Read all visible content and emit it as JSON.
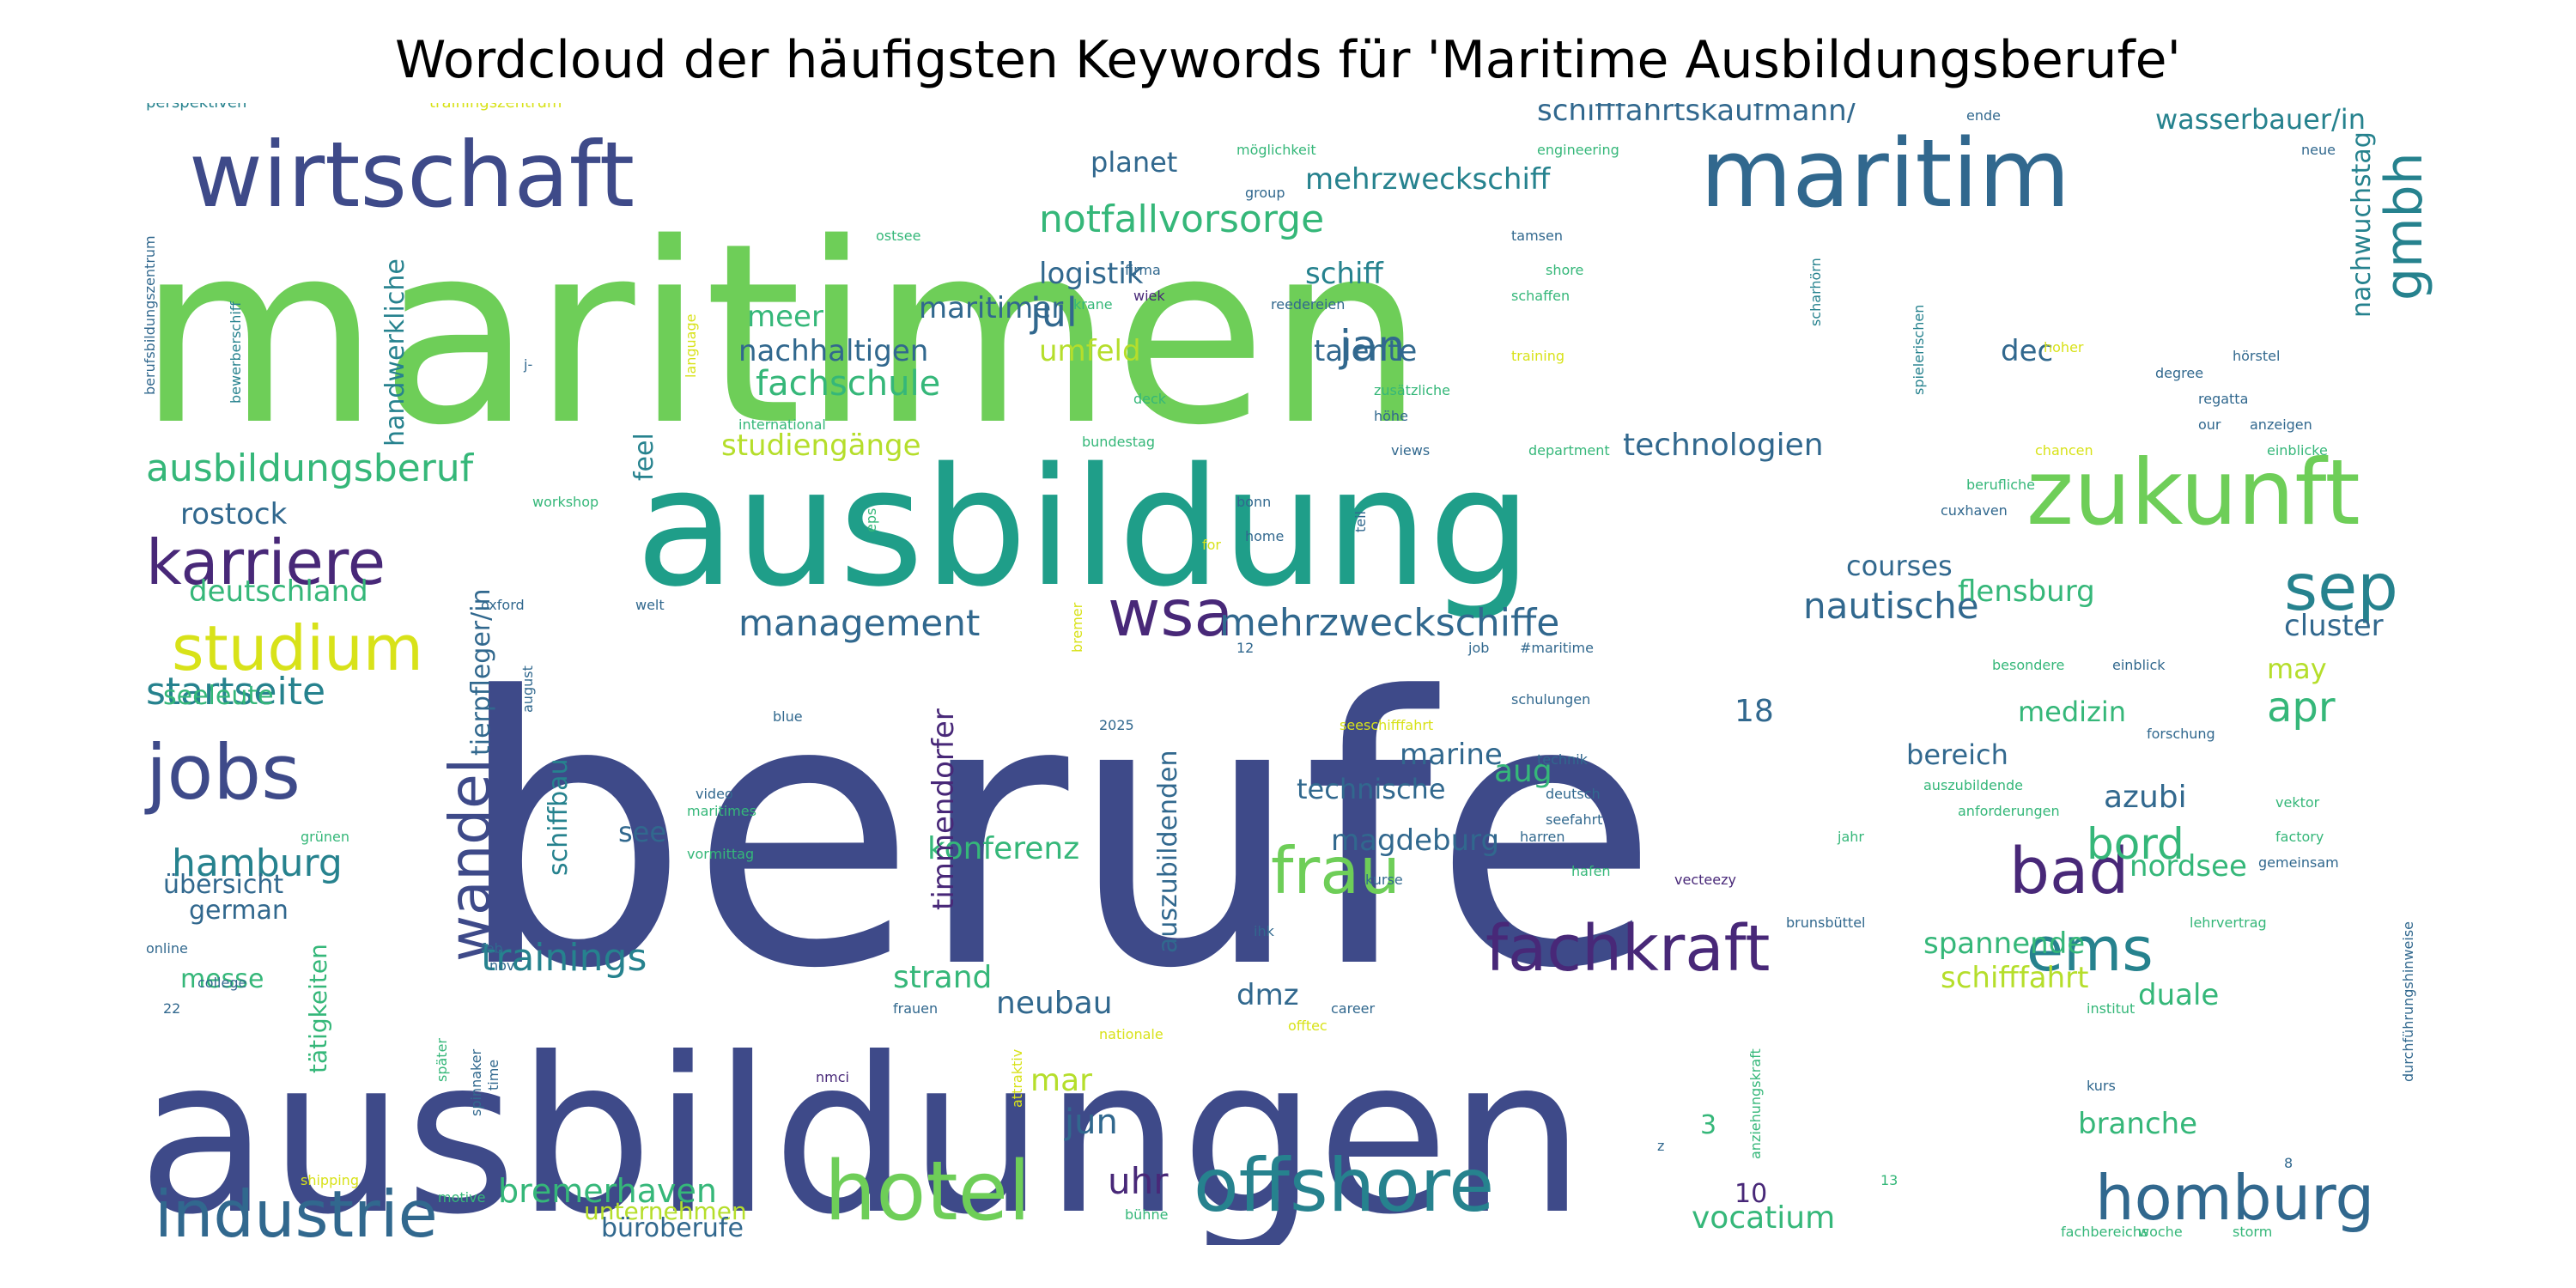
{
  "title": "Wordcloud der häufigsten Keywords für 'Maritime Ausbildungsberufe'",
  "words": [
    {
      "text": "maritimen",
      "color": "#6ece58"
    },
    {
      "text": "berufe",
      "color": "#3e4a89"
    },
    {
      "text": "ausbildungen",
      "color": "#3e4a89"
    },
    {
      "text": "ausbildung",
      "color": "#1f9e89"
    },
    {
      "text": "wirtschaft",
      "color": "#3e4a89"
    },
    {
      "text": "maritim",
      "color": "#31688e"
    },
    {
      "text": "zukunft",
      "color": "#6ece58"
    },
    {
      "text": "karriere",
      "color": "#482878"
    },
    {
      "text": "studium",
      "color": "#d8e219"
    },
    {
      "text": "jobs",
      "color": "#3e4a89"
    },
    {
      "text": "wandel",
      "color": "#3e4a89"
    },
    {
      "text": "hotel",
      "color": "#6ece58"
    },
    {
      "text": "offshore",
      "color": "#26828e"
    },
    {
      "text": "industrie",
      "color": "#31688e"
    },
    {
      "text": "homburg",
      "color": "#31688e"
    },
    {
      "text": "fachkraft",
      "color": "#482878"
    },
    {
      "text": "bad",
      "color": "#482878"
    },
    {
      "text": "ems",
      "color": "#26828e"
    },
    {
      "text": "sep",
      "color": "#26828e"
    },
    {
      "text": "wsa",
      "color": "#482878"
    },
    {
      "text": "frau",
      "color": "#6ece58"
    },
    {
      "text": "gmbh",
      "color": "#26828e"
    },
    {
      "text": "mehrzweckschiffe",
      "color": "#31688e"
    },
    {
      "text": "notfallvorsorge",
      "color": "#35b779"
    },
    {
      "text": "ausbildungsberuf",
      "color": "#35b779"
    },
    {
      "text": "startseite",
      "color": "#26828e"
    },
    {
      "text": "management",
      "color": "#31688e"
    },
    {
      "text": "nautische",
      "color": "#31688e"
    },
    {
      "text": "technologien",
      "color": "#31688e"
    },
    {
      "text": "trainings",
      "color": "#26828e"
    },
    {
      "text": "hamburg",
      "color": "#26828e"
    },
    {
      "text": "deutschland",
      "color": "#35b779"
    },
    {
      "text": "rostock",
      "color": "#31688e"
    },
    {
      "text": "jan",
      "color": "#31688e"
    },
    {
      "text": "jul",
      "color": "#31688e"
    },
    {
      "text": "fachschule",
      "color": "#35b779"
    },
    {
      "text": "bord",
      "color": "#35b779"
    },
    {
      "text": "apr",
      "color": "#35b779"
    },
    {
      "text": "konferenz",
      "color": "#35b779"
    },
    {
      "text": "timmendorfer",
      "color": "#482878"
    },
    {
      "text": "magdeburg",
      "color": "#31688e"
    },
    {
      "text": "marine",
      "color": "#31688e"
    },
    {
      "text": "technische",
      "color": "#31688e"
    },
    {
      "text": "auszubildenden",
      "color": "#31688e"
    },
    {
      "text": "bremerhaven",
      "color": "#35b779"
    },
    {
      "text": "uhr",
      "color": "#482878"
    },
    {
      "text": "strand",
      "color": "#35b779"
    },
    {
      "text": "neubau",
      "color": "#31688e"
    },
    {
      "text": "jun",
      "color": "#31688e"
    },
    {
      "text": "mar",
      "color": "#b5de2b"
    },
    {
      "text": "dmz",
      "color": "#31688e"
    },
    {
      "text": "vocatium",
      "color": "#35b779"
    },
    {
      "text": "branche",
      "color": "#35b779"
    },
    {
      "text": "spannende",
      "color": "#35b779"
    },
    {
      "text": "schifffahrt",
      "color": "#b5de2b"
    },
    {
      "text": "duale",
      "color": "#35b779"
    },
    {
      "text": "nordsee",
      "color": "#35b779"
    },
    {
      "text": "azubi",
      "color": "#31688e"
    },
    {
      "text": "aug",
      "color": "#35b779"
    },
    {
      "text": "see",
      "color": "#31688e"
    },
    {
      "text": "medizin",
      "color": "#35b779"
    },
    {
      "text": "bereich",
      "color": "#31688e"
    },
    {
      "text": "18",
      "color": "#31688e"
    },
    {
      "text": "flensburg",
      "color": "#35b779"
    },
    {
      "text": "courses",
      "color": "#31688e"
    },
    {
      "text": "cluster",
      "color": "#31688e"
    },
    {
      "text": "may",
      "color": "#b5de2b"
    },
    {
      "text": "schiffbau",
      "color": "#26828e"
    },
    {
      "text": "tierpfleger/in",
      "color": "#31688e"
    },
    {
      "text": "handwerkliche",
      "color": "#26828e"
    },
    {
      "text": "feel",
      "color": "#26828e"
    },
    {
      "text": "meer",
      "color": "#35b779"
    },
    {
      "text": "maritimer",
      "color": "#31688e"
    },
    {
      "text": "nachhaltigen",
      "color": "#31688e"
    },
    {
      "text": "umfeld",
      "color": "#b5de2b"
    },
    {
      "text": "studiengänge",
      "color": "#b5de2b"
    },
    {
      "text": "logistik",
      "color": "#31688e"
    },
    {
      "text": "schiff",
      "color": "#26828e"
    },
    {
      "text": "talente",
      "color": "#31688e"
    },
    {
      "text": "dec",
      "color": "#31688e"
    },
    {
      "text": "nachwuchstag",
      "color": "#26828e"
    },
    {
      "text": "mehrzweckschiff",
      "color": "#26828e"
    },
    {
      "text": "schifffahrtskaufmann/",
      "color": "#31688e"
    },
    {
      "text": "wasserbauer/in",
      "color": "#26828e"
    },
    {
      "text": "planet",
      "color": "#31688e"
    },
    {
      "text": "seeleute",
      "color": "#35b779"
    },
    {
      "text": "übersicht",
      "color": "#31688e"
    },
    {
      "text": "german",
      "color": "#31688e"
    },
    {
      "text": "messe",
      "color": "#35b779"
    },
    {
      "text": "tätigkeiten",
      "color": "#35b779"
    },
    {
      "text": "unternehmen",
      "color": "#b5de2b"
    },
    {
      "text": "büroberufe",
      "color": "#31688e"
    },
    {
      "text": "10",
      "color": "#482878"
    },
    {
      "text": "3",
      "color": "#35b779"
    },
    {
      "text": "perspektiven",
      "color": "#26828e"
    },
    {
      "text": "trainingszentrum",
      "color": "#d8e219"
    },
    {
      "text": "berufsbildungszentrum",
      "color": "#31688e"
    },
    {
      "text": "bewerberschiff",
      "color": "#26828e"
    },
    {
      "text": "möglichkeit",
      "color": "#35b779"
    },
    {
      "text": "engineering",
      "color": "#35b779"
    },
    {
      "text": "group",
      "color": "#31688e"
    },
    {
      "text": "ende",
      "color": "#31688e"
    },
    {
      "text": "neue",
      "color": "#31688e"
    },
    {
      "text": "ostsee",
      "color": "#35b779"
    },
    {
      "text": "tamsen",
      "color": "#31688e"
    },
    {
      "text": "shore",
      "color": "#35b779"
    },
    {
      "text": "schaffen",
      "color": "#35b779"
    },
    {
      "text": "firma",
      "color": "#31688e"
    },
    {
      "text": "krane",
      "color": "#35b779"
    },
    {
      "text": "wiek",
      "color": "#482878"
    },
    {
      "text": "reedereien",
      "color": "#31688e"
    },
    {
      "text": "training",
      "color": "#d8e219"
    },
    {
      "text": "scharhörn",
      "color": "#26828e"
    },
    {
      "text": "spielerischen",
      "color": "#26828e"
    },
    {
      "text": "hoher",
      "color": "#d8e219"
    },
    {
      "text": "degree",
      "color": "#31688e"
    },
    {
      "text": "hörstel",
      "color": "#31688e"
    },
    {
      "text": "regatta",
      "color": "#31688e"
    },
    {
      "text": "anzeigen",
      "color": "#31688e"
    },
    {
      "text": "einblicke",
      "color": "#35b779"
    },
    {
      "text": "our",
      "color": "#31688e"
    },
    {
      "text": "language",
      "color": "#d8e219"
    },
    {
      "text": "international",
      "color": "#35b779"
    },
    {
      "text": "deck",
      "color": "#35b779"
    },
    {
      "text": "zusätzliche",
      "color": "#35b779"
    },
    {
      "text": "höhe",
      "color": "#31688e"
    },
    {
      "text": "bundestag",
      "color": "#35b779"
    },
    {
      "text": "views",
      "color": "#31688e"
    },
    {
      "text": "department",
      "color": "#35b779"
    },
    {
      "text": "chancen",
      "color": "#d8e219"
    },
    {
      "text": "berufliche",
      "color": "#35b779"
    },
    {
      "text": "cuxhaven",
      "color": "#31688e"
    },
    {
      "text": "workshop",
      "color": "#35b779"
    },
    {
      "text": "bonn",
      "color": "#31688e"
    },
    {
      "text": "home",
      "color": "#31688e"
    },
    {
      "text": "for",
      "color": "#d8e219"
    },
    {
      "text": "teil",
      "color": "#31688e"
    },
    {
      "text": "eps",
      "color": "#35b779"
    },
    {
      "text": "oxford",
      "color": "#31688e"
    },
    {
      "text": "welt",
      "color": "#31688e"
    },
    {
      "text": "12",
      "color": "#31688e"
    },
    {
      "text": "job",
      "color": "#31688e"
    },
    {
      "text": "#maritime",
      "color": "#31688e"
    },
    {
      "text": "besondere",
      "color": "#35b779"
    },
    {
      "text": "einblick",
      "color": "#31688e"
    },
    {
      "text": "bremer",
      "color": "#d8e219"
    },
    {
      "text": "august",
      "color": "#31688e"
    },
    {
      "text": "video",
      "color": "#31688e"
    },
    {
      "text": "blue",
      "color": "#31688e"
    },
    {
      "text": "maritimes",
      "color": "#35b779"
    },
    {
      "text": "vormittag",
      "color": "#35b779"
    },
    {
      "text": "2025",
      "color": "#31688e"
    },
    {
      "text": "seeschifffahrt",
      "color": "#d8e219"
    },
    {
      "text": "schulungen",
      "color": "#31688e"
    },
    {
      "text": "technik",
      "color": "#31688e"
    },
    {
      "text": "deutsch",
      "color": "#31688e"
    },
    {
      "text": "seefahrt",
      "color": "#31688e"
    },
    {
      "text": "harren",
      "color": "#31688e"
    },
    {
      "text": "forschung",
      "color": "#31688e"
    },
    {
      "text": "auszubildende",
      "color": "#35b779"
    },
    {
      "text": "anforderungen",
      "color": "#35b779"
    },
    {
      "text": "vektor",
      "color": "#35b779"
    },
    {
      "text": "jahr",
      "color": "#35b779"
    },
    {
      "text": "factory",
      "color": "#35b779"
    },
    {
      "text": "hafen",
      "color": "#35b779"
    },
    {
      "text": "kurse",
      "color": "#31688e"
    },
    {
      "text": "vecteezy",
      "color": "#482878"
    },
    {
      "text": "gemeinsam",
      "color": "#31688e"
    },
    {
      "text": "grünen",
      "color": "#35b779"
    },
    {
      "text": "online",
      "color": "#31688e"
    },
    {
      "text": "feb",
      "color": "#31688e"
    },
    {
      "text": "nov",
      "color": "#31688e"
    },
    {
      "text": "ihk",
      "color": "#31688e"
    },
    {
      "text": "brunsbüttel",
      "color": "#31688e"
    },
    {
      "text": "lehrvertrag",
      "color": "#35b779"
    },
    {
      "text": "college",
      "color": "#31688e"
    },
    {
      "text": "22",
      "color": "#31688e"
    },
    {
      "text": "frauen",
      "color": "#31688e"
    },
    {
      "text": "career",
      "color": "#31688e"
    },
    {
      "text": "offtec",
      "color": "#d8e219"
    },
    {
      "text": "nationale",
      "color": "#d8e219"
    },
    {
      "text": "institut",
      "color": "#35b779"
    },
    {
      "text": "durchführungshinweise",
      "color": "#31688e"
    },
    {
      "text": "anziehungskraft",
      "color": "#35b779"
    },
    {
      "text": "nmci",
      "color": "#482878"
    },
    {
      "text": "spinnaker",
      "color": "#31688e"
    },
    {
      "text": "später",
      "color": "#35b779"
    },
    {
      "text": "time",
      "color": "#31688e"
    },
    {
      "text": "attraktiv",
      "color": "#d8e219"
    },
    {
      "text": "kurs",
      "color": "#31688e"
    },
    {
      "text": "shipping",
      "color": "#d8e219"
    },
    {
      "text": "motive",
      "color": "#35b779"
    },
    {
      "text": "13",
      "color": "#35b779"
    },
    {
      "text": "bühne",
      "color": "#35b779"
    },
    {
      "text": "fachbereichs",
      "color": "#35b779"
    },
    {
      "text": "woche",
      "color": "#35b779"
    },
    {
      "text": "storm",
      "color": "#35b779"
    },
    {
      "text": "8",
      "color": "#31688e"
    },
    {
      "text": "j-",
      "color": "#31688e"
    },
    {
      "text": "z",
      "color": "#31688e"
    }
  ]
}
